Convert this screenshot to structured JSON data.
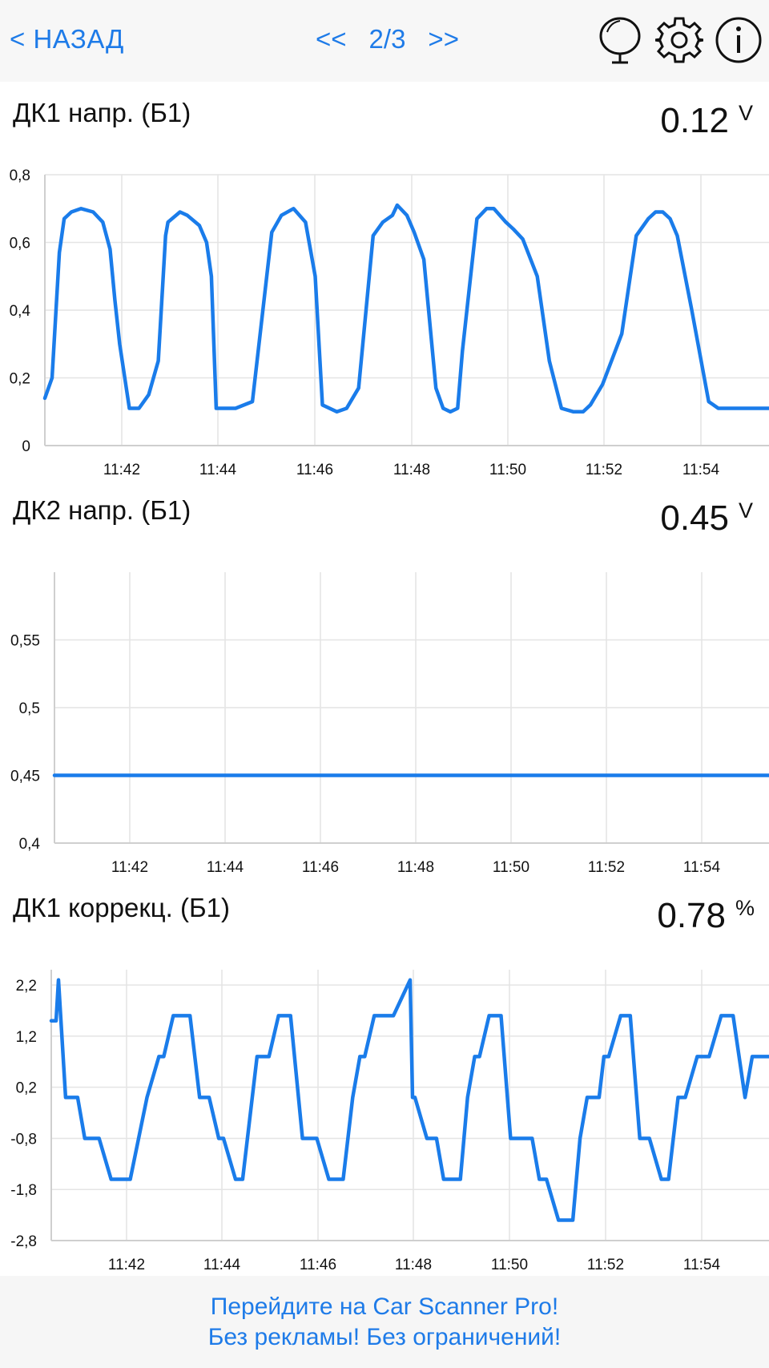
{
  "header": {
    "back_label": "< НАЗАД",
    "prev_label": "<<",
    "page_indicator": "2/3",
    "next_label": ">>",
    "icons": [
      "mirror-icon",
      "gear-icon",
      "info-icon"
    ]
  },
  "panels": [
    {
      "title": "ДК1 напр. (Б1)",
      "value": "0.12",
      "unit": "V"
    },
    {
      "title": "ДК2 напр. (Б1)",
      "value": "0.45",
      "unit": "V"
    },
    {
      "title": "ДК1 коррекц. (Б1)",
      "value": "0.78",
      "unit": "%"
    }
  ],
  "chart_data": [
    {
      "type": "line",
      "series_color": "#1a7cea",
      "x_unit": "minutes",
      "x_range": [
        40.5,
        55.5
      ],
      "x_ticks": [
        "11:42",
        "11:44",
        "11:46",
        "11:48",
        "11:50",
        "11:52",
        "11:54"
      ],
      "ylim": [
        0,
        0.8
      ],
      "y_ticks": [
        "0",
        "0,2",
        "0,4",
        "0,6",
        "0,8"
      ],
      "x": [
        40.5,
        40.65,
        40.8,
        40.9,
        41.05,
        41.25,
        41.5,
        41.7,
        41.85,
        41.95,
        42.05,
        42.25,
        42.45,
        42.65,
        42.85,
        43.0,
        43.05,
        43.3,
        43.45,
        43.7,
        43.85,
        43.95,
        44.05,
        44.15,
        44.45,
        44.8,
        45.2,
        45.4,
        45.65,
        45.9,
        46.1,
        46.25,
        46.55,
        46.75,
        47.0,
        47.3,
        47.5,
        47.7,
        47.8,
        48.0,
        48.15,
        48.35,
        48.6,
        48.75,
        48.9,
        49.05,
        49.15,
        49.45,
        49.65,
        49.8,
        50.05,
        50.2,
        50.4,
        50.7,
        50.95,
        51.2,
        51.45,
        51.5,
        51.65,
        51.8,
        52.05,
        52.45,
        52.75,
        53.0,
        53.15,
        53.3,
        53.45,
        53.6,
        53.9,
        54.25,
        54.45,
        54.65,
        54.95,
        55.1,
        55.3,
        55.5
      ],
      "y": [
        0.14,
        0.2,
        0.57,
        0.67,
        0.69,
        0.7,
        0.69,
        0.66,
        0.58,
        0.43,
        0.3,
        0.11,
        0.11,
        0.15,
        0.25,
        0.62,
        0.66,
        0.69,
        0.68,
        0.65,
        0.6,
        0.5,
        0.11,
        0.11,
        0.11,
        0.13,
        0.63,
        0.68,
        0.7,
        0.66,
        0.5,
        0.12,
        0.1,
        0.11,
        0.17,
        0.62,
        0.66,
        0.68,
        0.71,
        0.68,
        0.63,
        0.55,
        0.17,
        0.11,
        0.1,
        0.11,
        0.28,
        0.67,
        0.7,
        0.7,
        0.66,
        0.64,
        0.61,
        0.5,
        0.25,
        0.11,
        0.1,
        0.1,
        0.1,
        0.12,
        0.18,
        0.33,
        0.62,
        0.67,
        0.69,
        0.69,
        0.67,
        0.62,
        0.4,
        0.13,
        0.11,
        0.11,
        0.11,
        0.11,
        0.11,
        0.11
      ]
    },
    {
      "type": "line",
      "series_color": "#1a7cea",
      "x_unit": "minutes",
      "x_range": [
        40.3,
        55.3
      ],
      "x_ticks": [
        "11:42",
        "11:44",
        "11:46",
        "11:48",
        "11:50",
        "11:52",
        "11:54"
      ],
      "ylim": [
        0.4,
        0.6
      ],
      "y_ticks": [
        "0,4",
        "0,45",
        "0,5",
        "0,55"
      ],
      "x": [
        40.3,
        55.3
      ],
      "y": [
        0.45,
        0.45
      ]
    },
    {
      "type": "line",
      "series_color": "#1a7cea",
      "x_unit": "minutes",
      "x_range": [
        40.3,
        55.3
      ],
      "x_ticks": [
        "11:42",
        "11:44",
        "11:46",
        "11:48",
        "11:50",
        "11:52",
        "11:54"
      ],
      "ylim": [
        -2.8,
        2.5
      ],
      "y_ticks": [
        "-2,8",
        "-1,8",
        "-0,8",
        "0,2",
        "1,2",
        "2,2"
      ],
      "x": [
        40.3,
        40.4,
        40.45,
        40.6,
        40.85,
        41.0,
        41.3,
        41.55,
        41.8,
        41.95,
        42.3,
        42.55,
        42.65,
        42.85,
        43.2,
        43.4,
        43.6,
        43.8,
        43.9,
        44.15,
        44.3,
        44.6,
        44.85,
        45.05,
        45.3,
        45.55,
        45.85,
        46.1,
        46.4,
        46.6,
        46.75,
        46.85,
        47.05,
        47.25,
        47.45,
        47.8,
        47.85,
        47.9,
        48.15,
        48.35,
        48.5,
        48.85,
        49.0,
        49.15,
        49.25,
        49.45,
        49.7,
        49.9,
        50.2,
        50.35,
        50.5,
        50.65,
        50.9,
        51.2,
        51.35,
        51.5,
        51.6,
        51.75,
        51.85,
        51.95,
        52.2,
        52.4,
        52.6,
        52.8,
        53.05,
        53.2,
        53.4,
        53.55,
        53.8,
        54.05,
        54.3,
        54.55,
        54.8,
        54.95,
        55.2,
        55.3
      ],
      "y": [
        1.5,
        1.5,
        2.3,
        0.0,
        0.0,
        -0.8,
        -0.8,
        -1.6,
        -1.6,
        -1.6,
        0.0,
        0.8,
        0.8,
        1.6,
        1.6,
        0.0,
        0.0,
        -0.8,
        -0.8,
        -1.6,
        -1.6,
        0.8,
        0.8,
        1.6,
        1.6,
        -0.8,
        -0.8,
        -1.6,
        -1.6,
        0.0,
        0.8,
        0.8,
        1.6,
        1.6,
        1.6,
        2.3,
        0.0,
        0.0,
        -0.8,
        -0.8,
        -1.6,
        -1.6,
        0.0,
        0.8,
        0.8,
        1.6,
        1.6,
        -0.8,
        -0.8,
        -0.8,
        -1.6,
        -1.6,
        -2.4,
        -2.4,
        -0.8,
        0.0,
        0.0,
        0.0,
        0.8,
        0.8,
        1.6,
        1.6,
        -0.8,
        -0.8,
        -1.6,
        -1.6,
        0.0,
        0.0,
        0.8,
        0.8,
        1.6,
        1.6,
        0.0,
        0.8,
        0.8,
        0.8
      ]
    }
  ],
  "promo": {
    "line1": "Перейдите на Car Scanner Pro!",
    "line2": "Без рекламы! Без ограничений!"
  }
}
